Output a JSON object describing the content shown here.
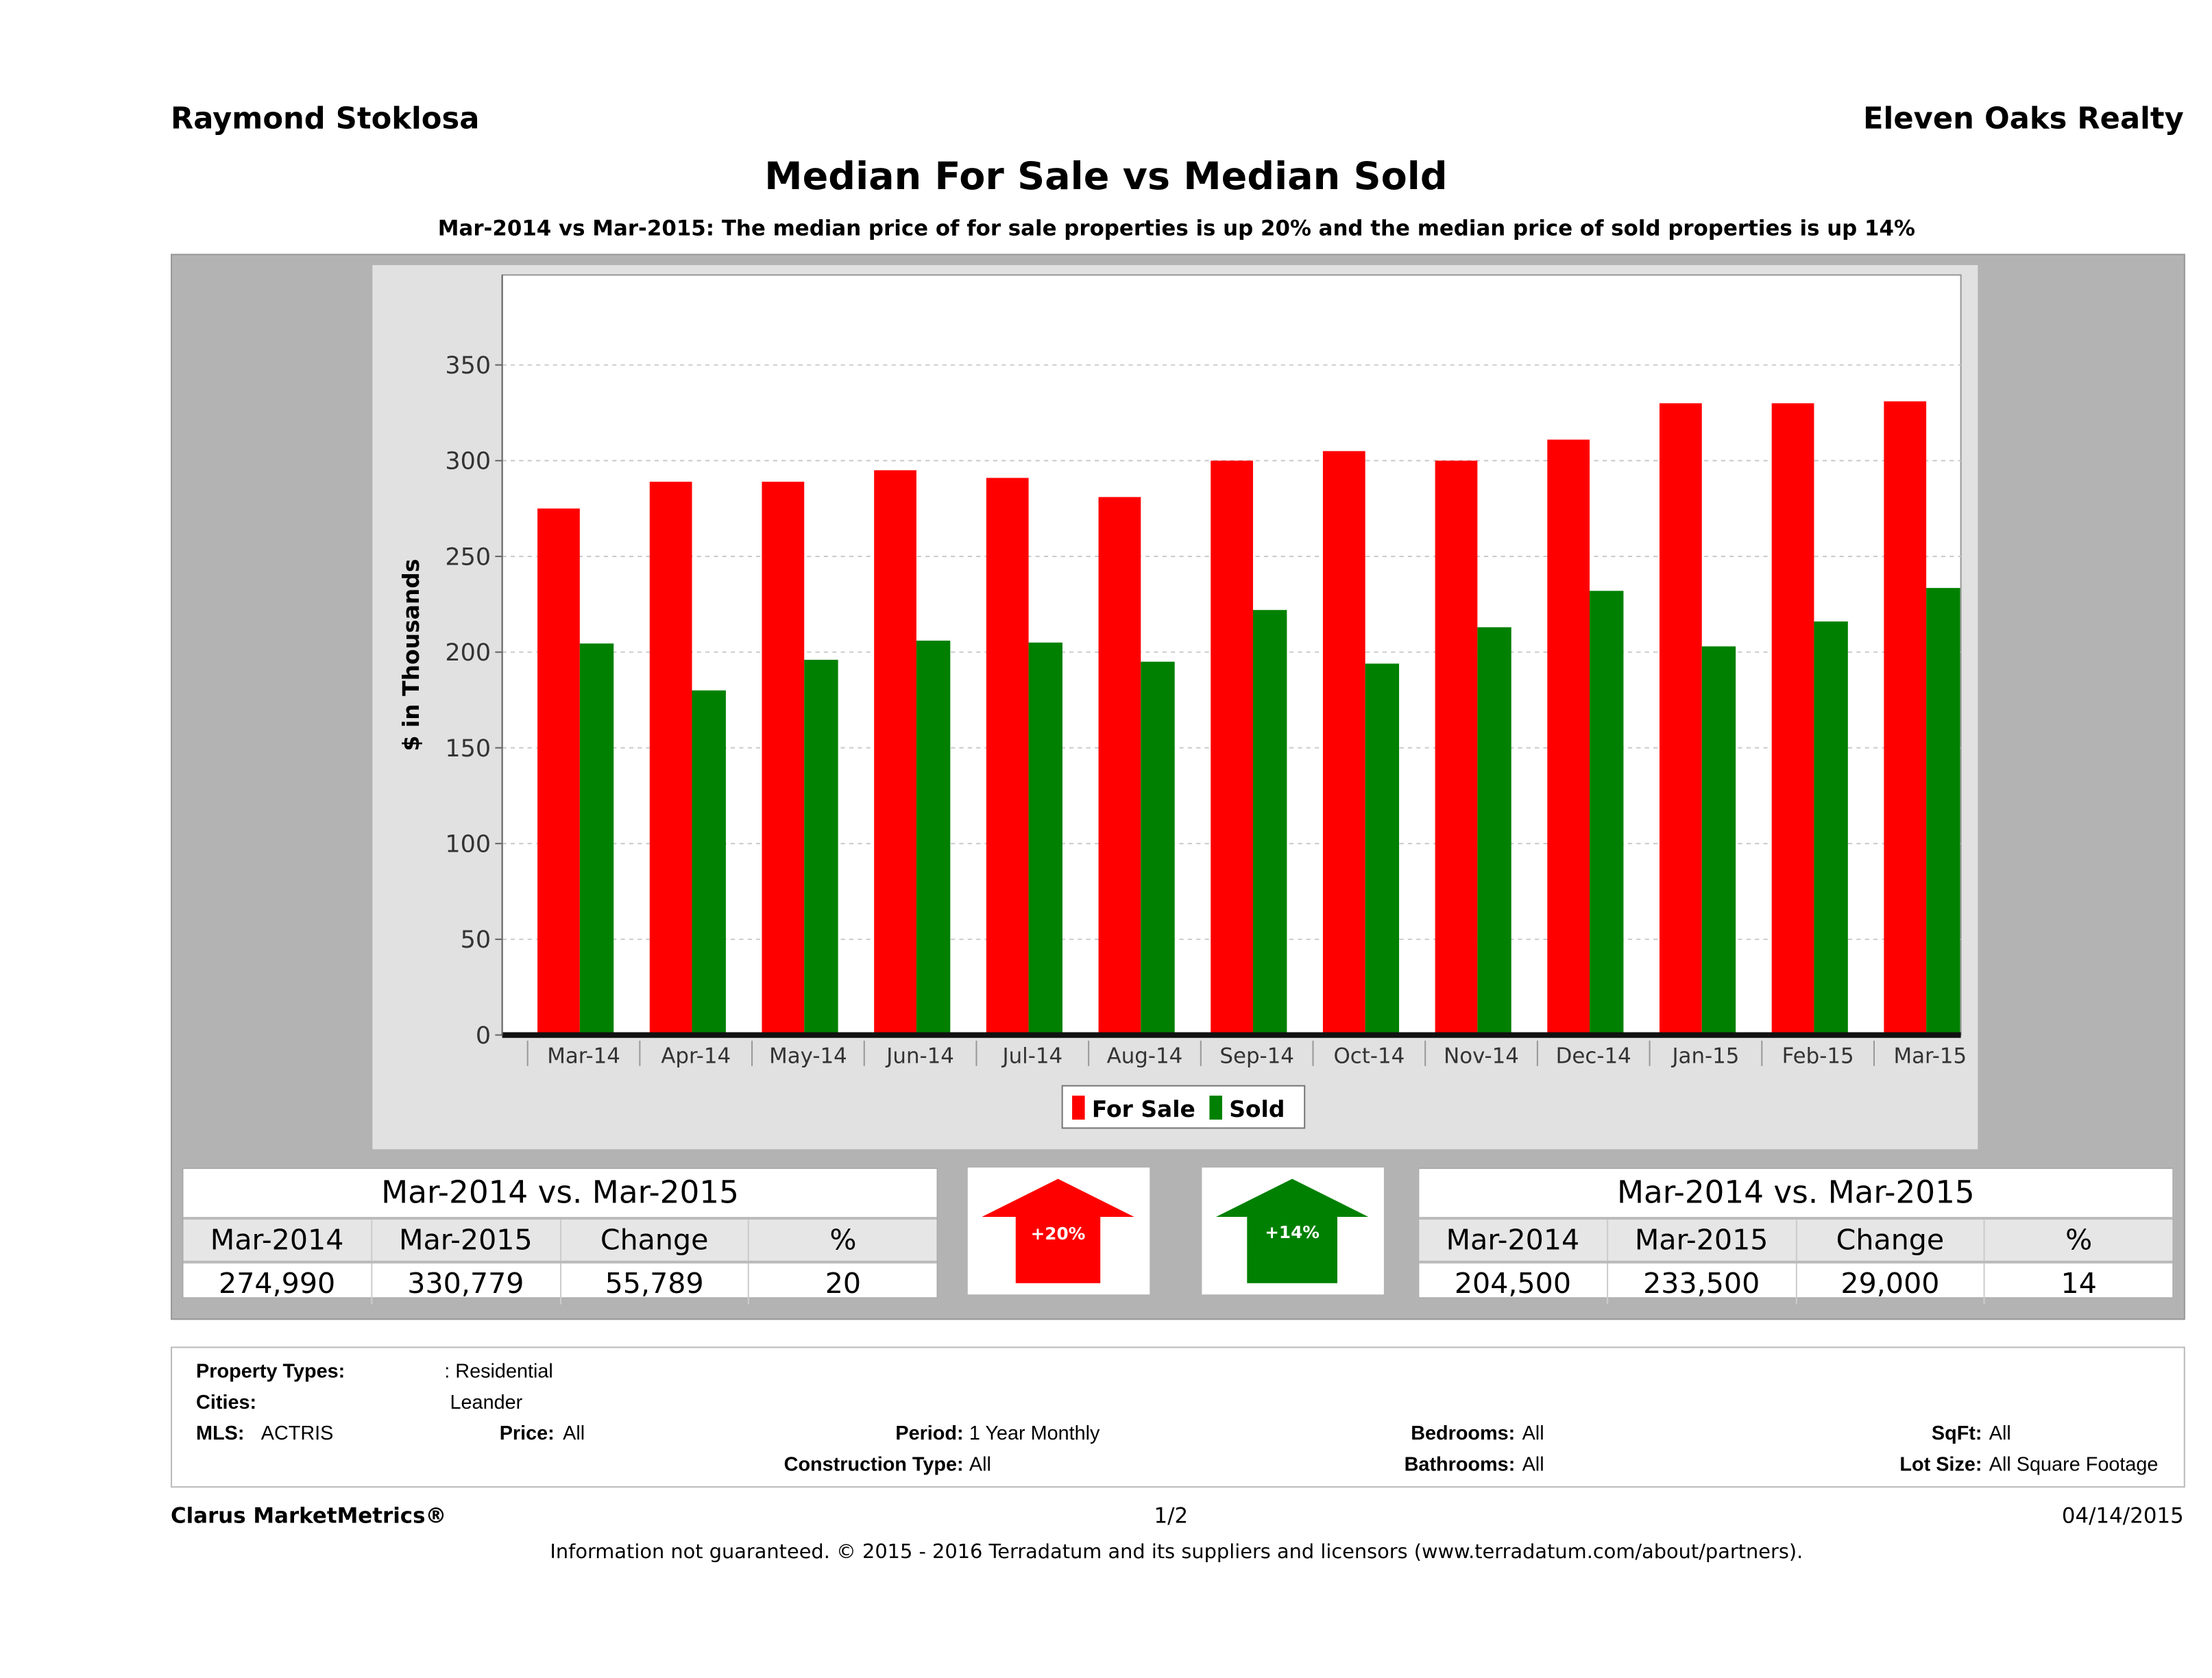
{
  "header": {
    "agent": "Raymond Stoklosa",
    "company": "Eleven Oaks Realty"
  },
  "chart_data": {
    "type": "bar",
    "title": "Median For Sale vs Median Sold",
    "subtitle": "Mar-2014 vs Mar-2015: The median price of for sale properties is up 20% and the median price of sold properties is up 14%",
    "ylabel": "$ in Thousands",
    "xlabel": "",
    "ylim": [
      0,
      397
    ],
    "yticks": [
      0,
      50,
      100,
      150,
      200,
      250,
      300,
      350
    ],
    "grid": true,
    "legend_placement": "bottom",
    "categories": [
      "Mar-14",
      "Apr-14",
      "May-14",
      "Jun-14",
      "Jul-14",
      "Aug-14",
      "Sep-14",
      "Oct-14",
      "Nov-14",
      "Dec-14",
      "Jan-15",
      "Feb-15",
      "Mar-15"
    ],
    "series": [
      {
        "name": "For Sale",
        "color": "#ff0000",
        "values": [
          275,
          289,
          289,
          295,
          291,
          281,
          300,
          305,
          300,
          311,
          330,
          330,
          331
        ]
      },
      {
        "name": "Sold",
        "color": "#008000",
        "values": [
          204.5,
          180,
          196,
          206,
          205,
          195,
          222,
          194,
          213,
          232,
          203,
          216,
          233.5
        ]
      }
    ]
  },
  "for_sale_table": {
    "title": "Mar-2014 vs. Mar-2015",
    "headers": [
      "Mar-2014",
      "Mar-2015",
      "Change",
      "%"
    ],
    "values": [
      "274,990",
      "330,779",
      "55,789",
      "20"
    ]
  },
  "sold_table": {
    "title": "Mar-2014 vs. Mar-2015",
    "headers": [
      "Mar-2014",
      "Mar-2015",
      "Change",
      "%"
    ],
    "values": [
      "204,500",
      "233,500",
      "29,000",
      "14"
    ]
  },
  "arrows": [
    {
      "label": "+20%",
      "color": "#ff0000",
      "direction": "up"
    },
    {
      "label": "+14%",
      "color": "#008000",
      "direction": "up"
    }
  ],
  "criteria": {
    "property_types_label": "Property Types:",
    "property_types": ": Residential",
    "cities_label": "Cities:",
    "cities": "Leander",
    "mls_label": "MLS:",
    "mls": "ACTRIS",
    "price_label": "Price:",
    "price": "All",
    "period_label": "Period:",
    "period": "1 Year Monthly",
    "construction_label": "Construction Type:",
    "construction": "All",
    "bedrooms_label": "Bedrooms:",
    "bedrooms": "All",
    "bathrooms_label": "Bathrooms:",
    "bathrooms": "All",
    "sqft_label": "SqFt:",
    "sqft": "All",
    "lot_label": "Lot Size:",
    "lot": "All Square Footage"
  },
  "footer": {
    "brand": "Clarus MarketMetrics®",
    "page": "1/2",
    "date": "04/14/2015",
    "disclaimer": "Information not guaranteed. © 2015 - 2016 Terradatum and its suppliers and licensors (www.terradatum.com/about/partners)."
  }
}
